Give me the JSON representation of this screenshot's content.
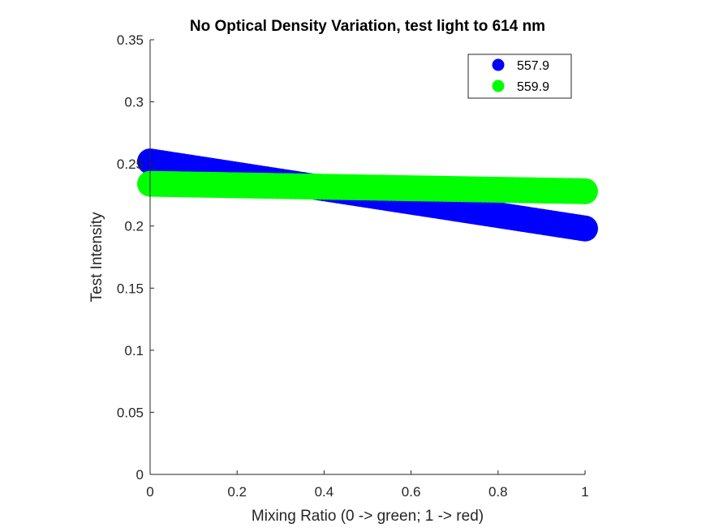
{
  "chart_data": {
    "type": "scatter",
    "title": "No Optical Density Variation, test light to 614 nm",
    "xlabel": "Mixing Ratio (0 -> green; 1 -> red)",
    "ylabel": "Test Intensity",
    "xlim": [
      0,
      1
    ],
    "ylim": [
      0,
      0.35
    ],
    "xticks": [
      0,
      0.2,
      0.4,
      0.6,
      0.8,
      1
    ],
    "xtick_labels": [
      "0",
      "0.2",
      "0.4",
      "0.6",
      "0.8",
      "1"
    ],
    "yticks": [
      0,
      0.05,
      0.1,
      0.15,
      0.2,
      0.25,
      0.3,
      0.35
    ],
    "ytick_labels": [
      "0",
      "0.05",
      "0.1",
      "0.15",
      "0.2",
      "0.25",
      "0.3",
      "0.35"
    ],
    "grid": false,
    "legend_position": "top-right",
    "series": [
      {
        "name": "557.9",
        "color": "#0000ff",
        "marker": "filled-circle",
        "x": [
          0,
          0.05,
          0.1,
          0.15,
          0.2,
          0.25,
          0.3,
          0.35,
          0.4,
          0.45,
          0.5,
          0.55,
          0.6,
          0.65,
          0.7,
          0.75,
          0.8,
          0.85,
          0.9,
          0.95,
          1
        ],
        "y": [
          0.252,
          0.2493,
          0.2466,
          0.2439,
          0.2412,
          0.2385,
          0.2358,
          0.2331,
          0.2304,
          0.2277,
          0.225,
          0.2223,
          0.2196,
          0.2169,
          0.2142,
          0.2115,
          0.2088,
          0.2061,
          0.2034,
          0.2007,
          0.198
        ]
      },
      {
        "name": "559.9",
        "color": "#00ff00",
        "marker": "filled-circle",
        "x": [
          0,
          0.05,
          0.1,
          0.15,
          0.2,
          0.25,
          0.3,
          0.35,
          0.4,
          0.45,
          0.5,
          0.55,
          0.6,
          0.65,
          0.7,
          0.75,
          0.8,
          0.85,
          0.9,
          0.95,
          1
        ],
        "y": [
          0.234,
          0.2337,
          0.2334,
          0.2331,
          0.2328,
          0.2325,
          0.2322,
          0.2319,
          0.2316,
          0.2313,
          0.231,
          0.2307,
          0.2304,
          0.2301,
          0.2298,
          0.2295,
          0.2292,
          0.2289,
          0.2286,
          0.2283,
          0.228
        ]
      }
    ]
  }
}
